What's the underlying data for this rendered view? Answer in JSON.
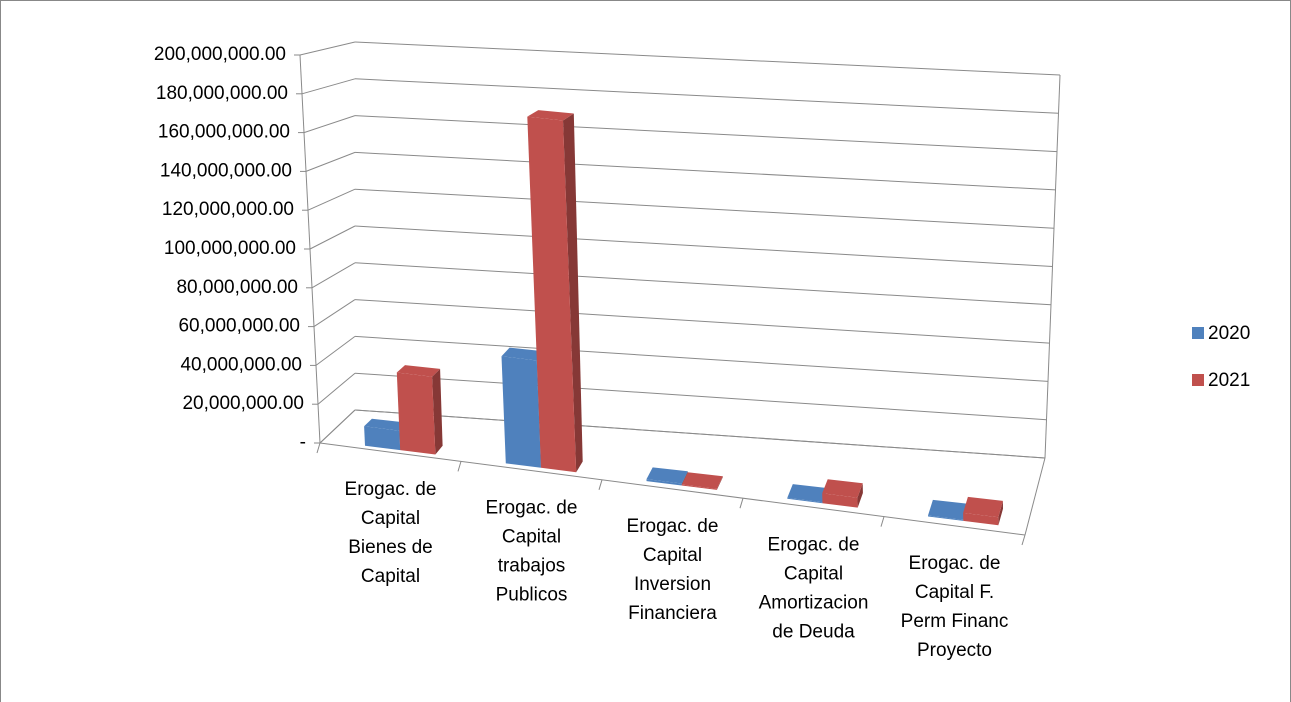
{
  "chart_data": {
    "type": "bar3d",
    "categories": [
      "Erogac. de Capital Bienes de Capital",
      "Erogac. de Capital trabajos Publicos",
      "Erogac. de Capital Inversion Financiera",
      "Erogac. de Capital Amortizacion de Deuda",
      "Erogac. de Capital F. Perm Financ Proyecto"
    ],
    "series": [
      {
        "name": "2020",
        "color": "#4f81bd",
        "values": [
          10000000,
          55000000,
          1000000,
          500000,
          500000
        ]
      },
      {
        "name": "2021",
        "color": "#c0504d",
        "values": [
          40000000,
          180000000,
          500000,
          5000000,
          4000000
        ]
      }
    ],
    "ylim": [
      0,
      200000000
    ],
    "yticks": [
      {
        "value": 0,
        "label": "-"
      },
      {
        "value": 20000000,
        "label": "20,000,000.00"
      },
      {
        "value": 40000000,
        "label": "40,000,000.00"
      },
      {
        "value": 60000000,
        "label": "60,000,000.00"
      },
      {
        "value": 80000000,
        "label": "80,000,000.00"
      },
      {
        "value": 100000000,
        "label": "100,000,000.00"
      },
      {
        "value": 120000000,
        "label": "120,000,000.00"
      },
      {
        "value": 140000000,
        "label": "140,000,000.00"
      },
      {
        "value": 160000000,
        "label": "160,000,000.00"
      },
      {
        "value": 180000000,
        "label": "180,000,000.00"
      },
      {
        "value": 200000000,
        "label": "200,000,000.00"
      }
    ],
    "grid": true,
    "legend": "right"
  }
}
